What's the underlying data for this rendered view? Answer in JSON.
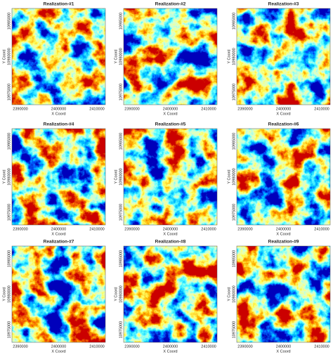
{
  "panels": [
    {
      "title": "Realization-#1",
      "x_label": "X Coord",
      "y_label": "Y Coord",
      "x_ticks": [
        "2390000",
        "2400000",
        "2410000"
      ],
      "y_ticks": [
        "10985000",
        "10980000",
        "10975000"
      ]
    },
    {
      "title": "Realization-#2",
      "x_label": "X Coord",
      "y_label": "Y Coord",
      "x_ticks": [
        "2390000",
        "2400000",
        "2410000"
      ],
      "y_ticks": [
        "10985000",
        "10980000",
        "10975000"
      ]
    },
    {
      "title": "Realization-#3",
      "x_label": "X Coord",
      "y_label": "Y Coord",
      "x_ticks": [
        "2390000",
        "2400000",
        "2410000"
      ],
      "y_ticks": [
        "10985000",
        "10980000",
        "10975000"
      ]
    },
    {
      "title": "Realization-#4",
      "x_label": "X Coord",
      "y_label": "Y Coord",
      "x_ticks": [
        "2390000",
        "2400000",
        "2410000"
      ],
      "y_ticks": [
        "10985000",
        "10980000",
        "10975000"
      ]
    },
    {
      "title": "Realization-#5",
      "x_label": "X Coord",
      "y_label": "Y Coord",
      "x_ticks": [
        "2390000",
        "2400000",
        "2410000"
      ],
      "y_ticks": [
        "10985000",
        "10980000",
        "10975000"
      ]
    },
    {
      "title": "Realization-#6",
      "x_label": "X Coord",
      "y_label": "Y Coord",
      "x_ticks": [
        "2390000",
        "2400000",
        "2410000"
      ],
      "y_ticks": [
        "10985000",
        "10980000",
        "10975000"
      ]
    },
    {
      "title": "Realization-#7",
      "x_label": "X Coord",
      "y_label": "Y Coord",
      "x_ticks": [
        "2390000",
        "2400000",
        "2410000"
      ],
      "y_ticks": [
        "10985000",
        "10980000",
        "10975000"
      ]
    },
    {
      "title": "Realization-#8",
      "x_label": "X Coord",
      "y_label": "Y Coord",
      "x_ticks": [
        "2390000",
        "2400000",
        "2410000"
      ],
      "y_ticks": [
        "10985000",
        "10980000",
        "10975000"
      ]
    },
    {
      "title": "Realization-#9",
      "x_label": "X Coord",
      "y_label": "Y Coord",
      "x_ticks": [
        "2390000",
        "2400000",
        "2410000"
      ],
      "y_ticks": [
        "10985000",
        "10980000",
        "10975000"
      ]
    }
  ]
}
